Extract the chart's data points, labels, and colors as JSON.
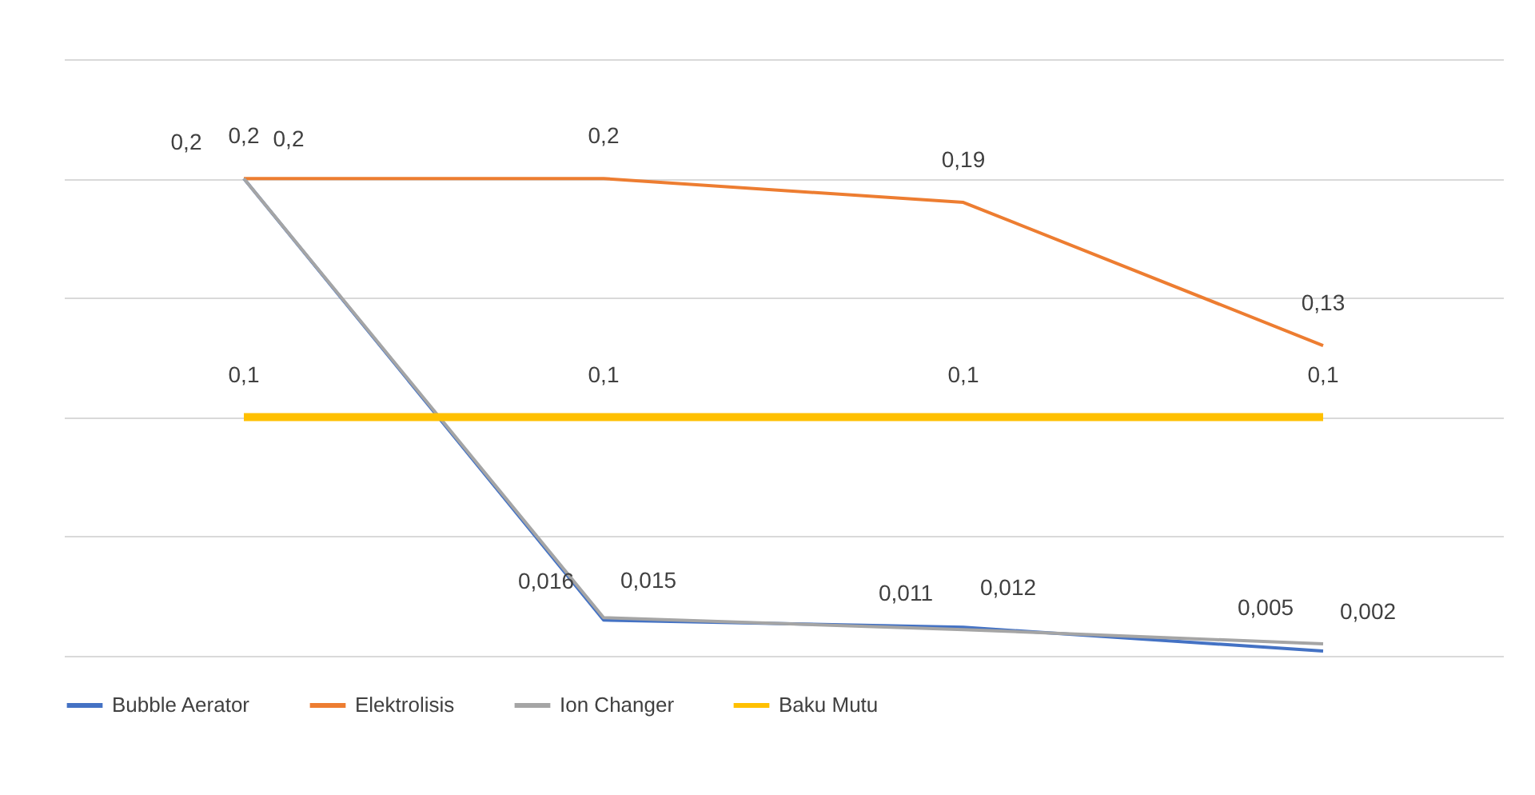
{
  "chart_data": {
    "type": "line",
    "categories": [
      null,
      null,
      null,
      null
    ],
    "series": [
      {
        "name": "Bubble Aerator",
        "color": "#4472c4",
        "values": [
          0.2,
          0.015,
          0.012,
          0.002
        ],
        "value_labels": [
          "0,2",
          "0,015",
          "0,012",
          "0,002"
        ]
      },
      {
        "name": "Elektrolisis",
        "color": "#ed7d31",
        "values": [
          0.2,
          0.2,
          0.19,
          0.13
        ],
        "value_labels": [
          "0,2",
          "0,2",
          "0,19",
          "0,13"
        ]
      },
      {
        "name": "Ion Changer",
        "color": "#a5a5a5",
        "values": [
          0.2,
          0.016,
          0.011,
          0.005
        ],
        "value_labels": [
          "0,2",
          "0,016",
          "0,011",
          "0,005"
        ]
      },
      {
        "name": "Baku Mutu",
        "color": "#ffc000",
        "values": [
          0.1,
          0.1,
          0.1,
          0.1
        ],
        "value_labels": [
          "0,1",
          "0,1",
          "0,1",
          "0,1"
        ]
      }
    ],
    "ylim": [
      0,
      0.25
    ],
    "yticks": [
      0,
      0.05,
      0.1,
      0.15,
      0.2,
      0.25
    ],
    "grid": "y",
    "tick_labels": false,
    "legend": "bottom",
    "marker": "none",
    "line_style": "solid"
  }
}
